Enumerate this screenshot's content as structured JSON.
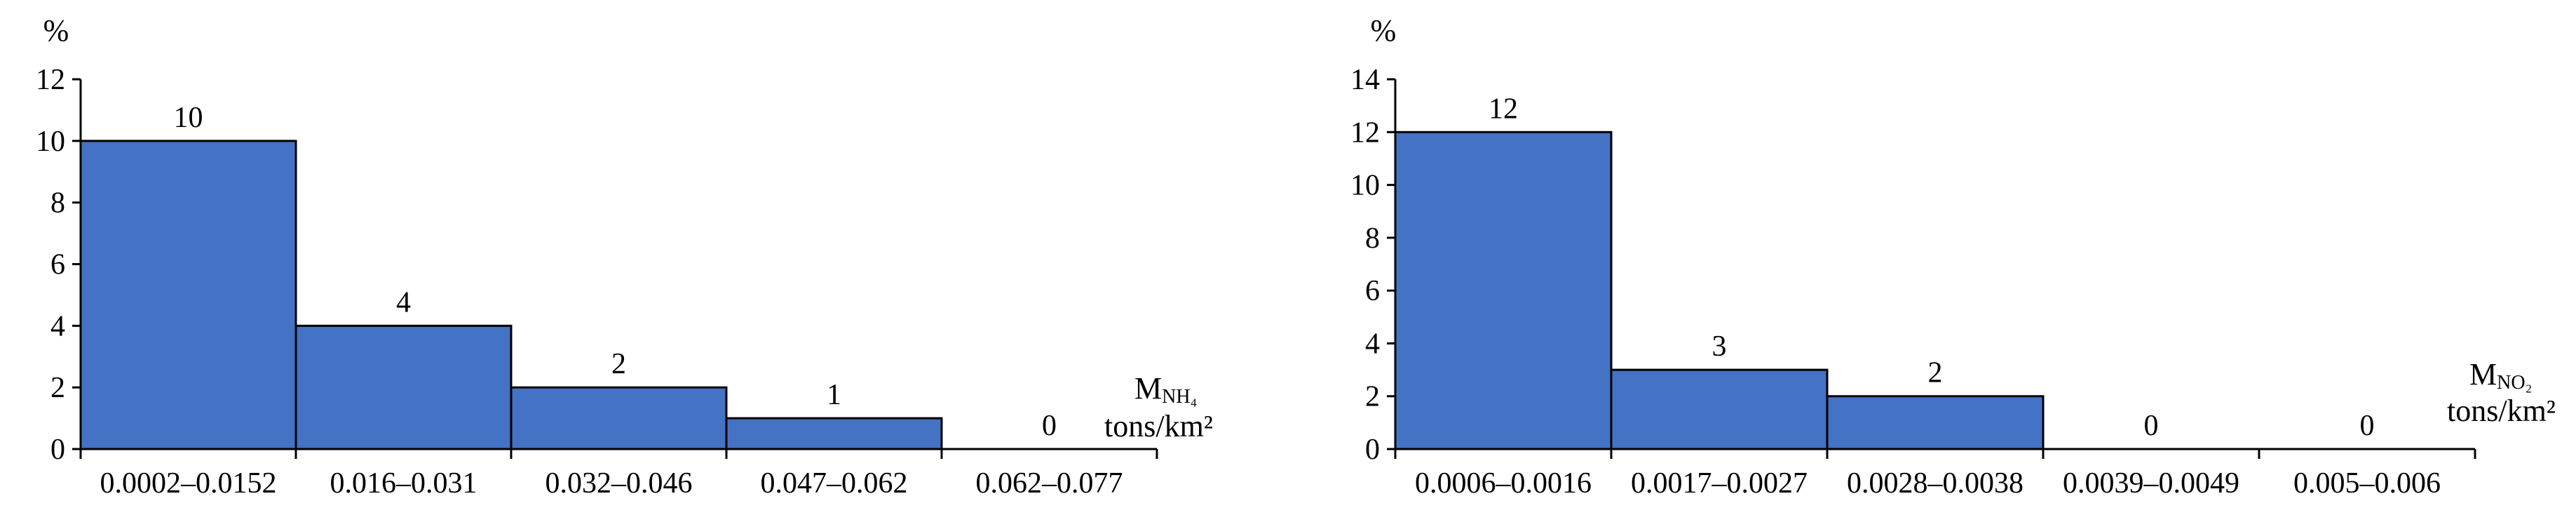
{
  "chart_data": [
    {
      "type": "bar",
      "ylabel": "%",
      "xlabel_main": "M",
      "xlabel_sub": "NH₄",
      "xunit": "tons/km²",
      "ylim": [
        0,
        12
      ],
      "yticks": [
        0,
        2,
        4,
        6,
        8,
        10,
        12
      ],
      "categories": [
        "0.0002–0.0152",
        "0.016–0.031",
        "0.032–0.046",
        "0.047–0.062",
        "0.062–0.077"
      ],
      "values": [
        10,
        4,
        2,
        1,
        0
      ],
      "data_labels": [
        "10",
        "4",
        "2",
        "1",
        "0"
      ],
      "bar_color": "#4472C4"
    },
    {
      "type": "bar",
      "ylabel": "%",
      "xlabel_main": "M",
      "xlabel_sub": "NO₂",
      "xunit": "tons/km²",
      "ylim": [
        0,
        14
      ],
      "yticks": [
        0,
        2,
        4,
        6,
        8,
        10,
        12,
        14
      ],
      "categories": [
        "0.0006–0.0016",
        "0.0017–0.0027",
        "0.0028–0.0038",
        "0.0039–0.0049",
        "0.005–0.006"
      ],
      "values": [
        12,
        3,
        2,
        0,
        0
      ],
      "data_labels": [
        "12",
        "3",
        "2",
        "0",
        "0"
      ],
      "bar_color": "#4472C4"
    }
  ]
}
